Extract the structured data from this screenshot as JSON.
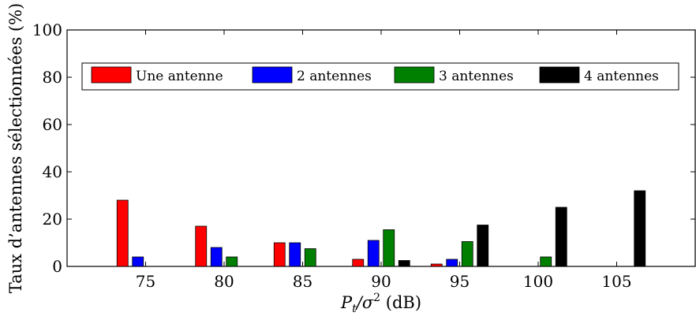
{
  "chart_data": {
    "type": "bar",
    "categories": [
      "75",
      "80",
      "85",
      "90",
      "95",
      "100",
      "105"
    ],
    "series": [
      {
        "name": "Une antenne",
        "color": "#ff0000",
        "values": [
          28,
          17,
          10,
          3,
          1,
          0,
          0
        ]
      },
      {
        "name": "2 antennes",
        "color": "#0000ff",
        "values": [
          4,
          8,
          10,
          11,
          3,
          0,
          0
        ]
      },
      {
        "name": "3 antennes",
        "color": "#008000",
        "values": [
          0,
          4,
          7.5,
          15.5,
          10.5,
          4,
          0
        ]
      },
      {
        "name": "4 antennes",
        "color": "#000000",
        "values": [
          0,
          0,
          0,
          2.5,
          17.5,
          25,
          32
        ]
      }
    ],
    "title": "",
    "xlabel": "P_t/σ² (dB)",
    "xlabel_parts": {
      "P": "P",
      "t": "t",
      "sigma": "/σ",
      "sq": "2",
      "unit": " (dB)"
    },
    "ylabel": "Taux d’antennes sélectionnées (%)",
    "ylim": [
      0,
      100
    ],
    "yticks": [
      "0",
      "20",
      "40",
      "60",
      "80",
      "100"
    ],
    "grid": false,
    "legend_position": "top, horizontal"
  }
}
